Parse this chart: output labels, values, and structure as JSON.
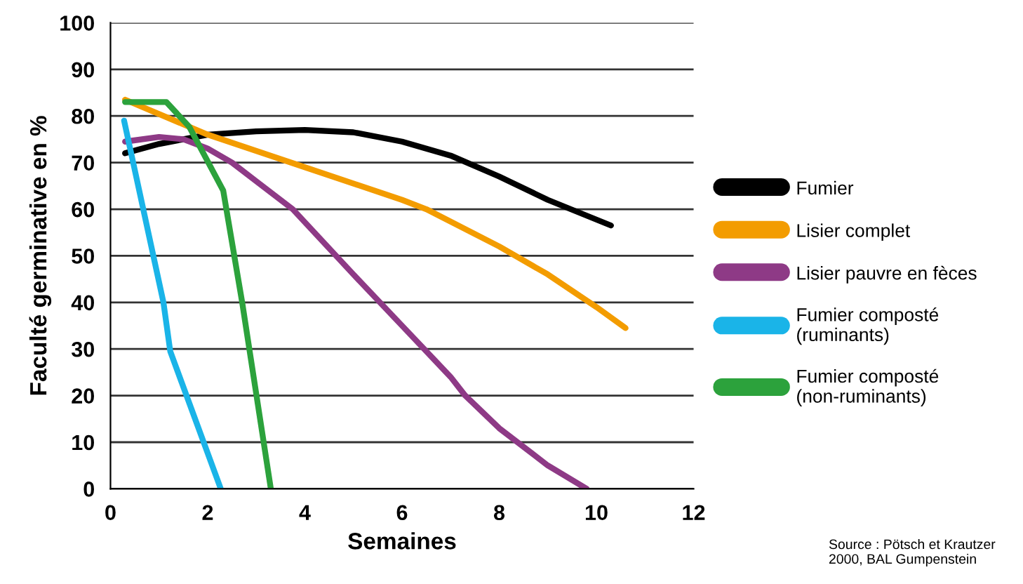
{
  "chart_data": {
    "type": "line",
    "xlabel": "Semaines",
    "ylabel": "Faculté germinative en %",
    "xlim": [
      0,
      12
    ],
    "xticks": [
      0,
      2,
      4,
      6,
      8,
      10,
      12
    ],
    "ylim": [
      0,
      100
    ],
    "yticks": [
      0,
      10,
      20,
      30,
      40,
      50,
      60,
      70,
      80,
      90,
      100
    ],
    "grid": "y",
    "legend": "right",
    "marker": "none",
    "line_style": "solid",
    "annotations": [
      "Source : Pötsch et Krautzer\n2000, BAL Gumpenstein"
    ],
    "series": [
      {
        "name": "Fumier",
        "color": "#000000",
        "x": [
          0.3,
          1,
          2,
          3,
          4,
          5,
          6,
          7,
          8,
          9,
          10.3
        ],
        "values": [
          72,
          74,
          76,
          76.7,
          77,
          76.5,
          74.5,
          71.5,
          67,
          62,
          56.5
        ]
      },
      {
        "name": "Lisier complet",
        "color": "#f39c00",
        "x": [
          0.3,
          2,
          4,
          6,
          6.5,
          8,
          9,
          10,
          10.6
        ],
        "values": [
          83.5,
          76,
          69,
          62,
          60,
          52,
          46,
          39,
          34.5
        ]
      },
      {
        "name": "Lisier pauvre en fèces",
        "color": "#8e3a86",
        "x": [
          0.3,
          1,
          1.5,
          2,
          2.5,
          3,
          3.75,
          5,
          6,
          7,
          7.3,
          8,
          9,
          9.8
        ],
        "values": [
          74.5,
          75.5,
          75,
          73,
          70,
          66,
          60,
          46,
          35,
          24,
          20,
          13,
          5,
          0
        ]
      },
      {
        "name": "Fumier composté\n(ruminants)",
        "color": "#1ab4e8",
        "x": [
          0.28,
          1.09,
          1.23,
          2.27
        ],
        "values": [
          79,
          40,
          29.5,
          0
        ]
      },
      {
        "name": "Fumier composté\n(non-ruminants)",
        "color": "#2ca23c",
        "x": [
          0.3,
          1.15,
          1.62,
          2.32,
          2.71,
          3.3
        ],
        "values": [
          83,
          83,
          77.7,
          64,
          40,
          0
        ]
      }
    ]
  }
}
